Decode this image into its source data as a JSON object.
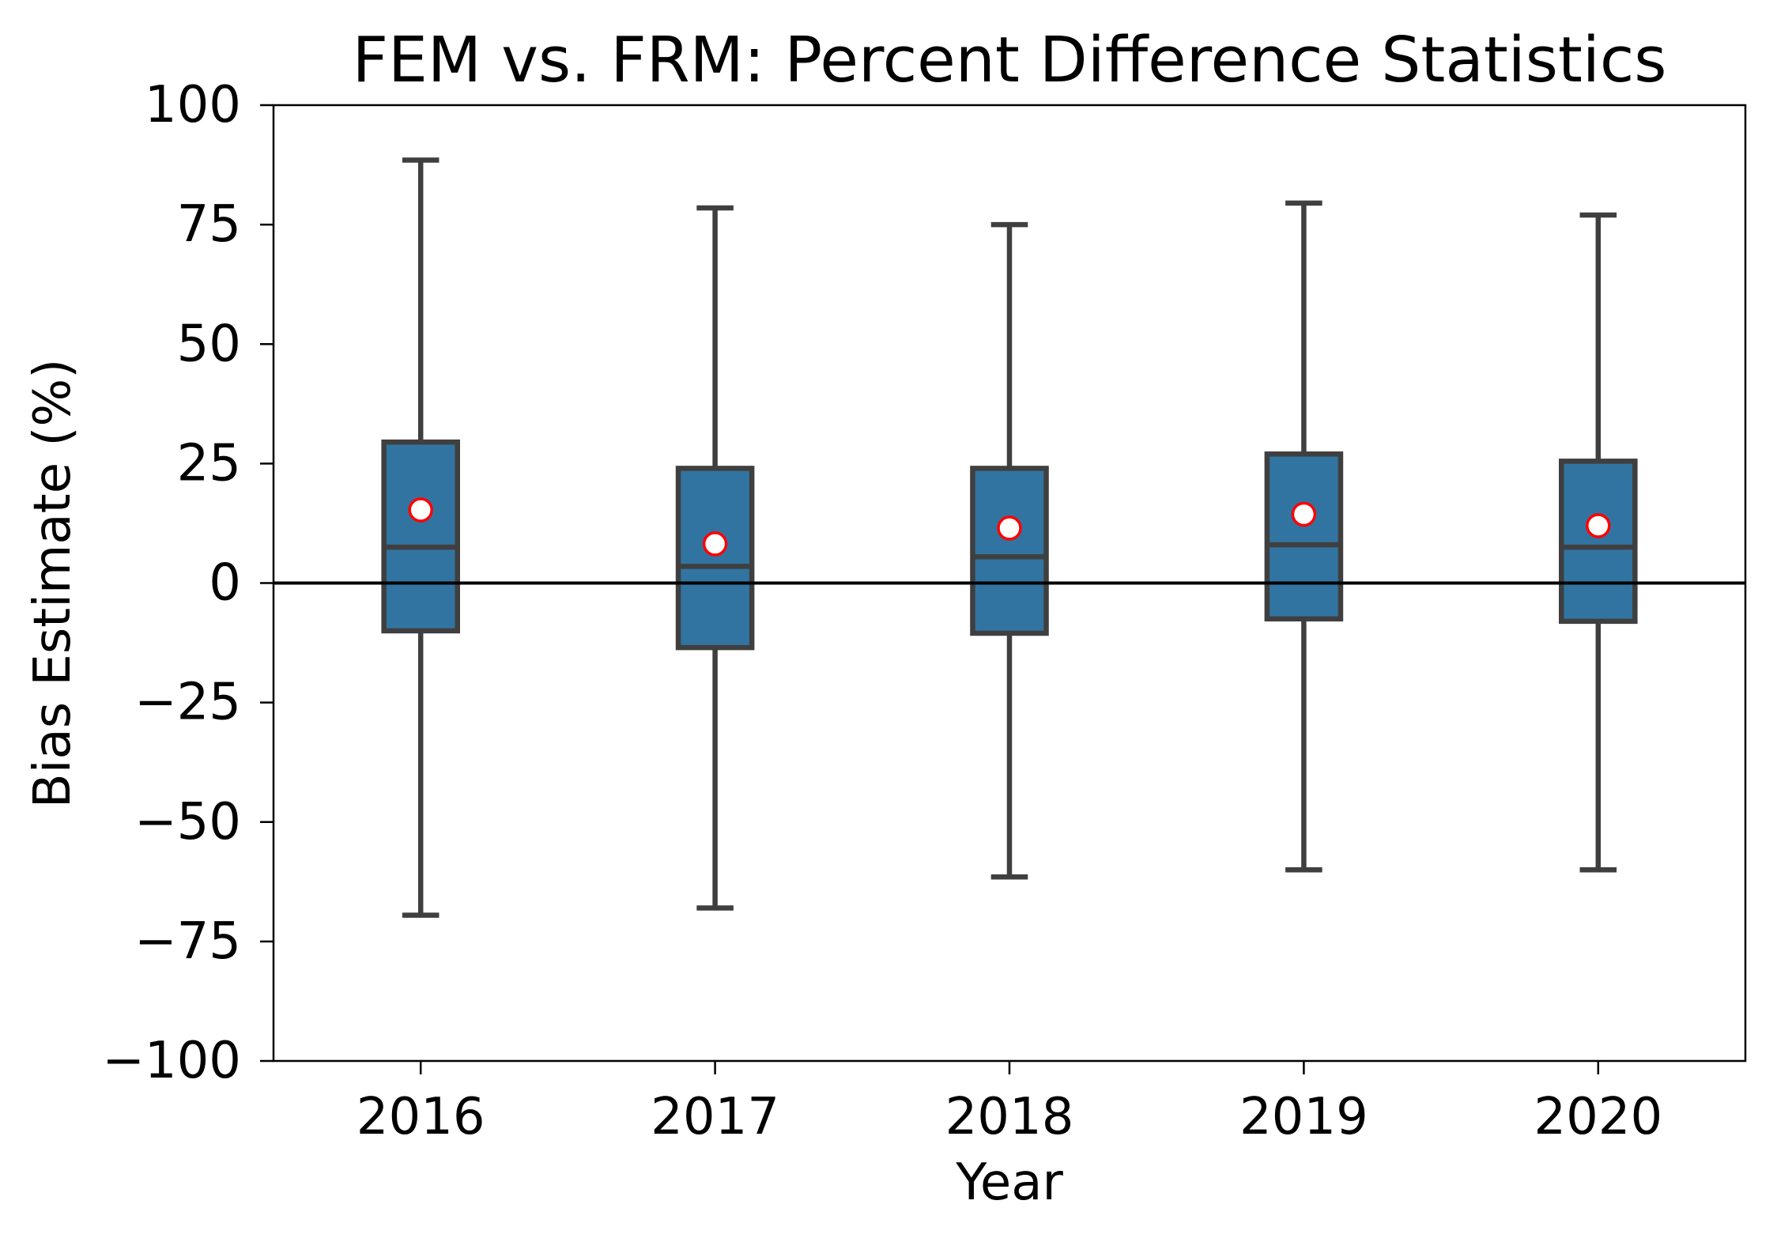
{
  "chart_data": {
    "type": "box",
    "title": "FEM vs. FRM: Percent Difference Statistics",
    "xlabel": "Year",
    "ylabel": "Bias Estimate (%)",
    "categories": [
      "2016",
      "2017",
      "2018",
      "2019",
      "2020"
    ],
    "ylim": [
      -100,
      100
    ],
    "yticks": [
      100,
      75,
      50,
      25,
      0,
      -25,
      -50,
      -75,
      -100
    ],
    "ytick_labels": [
      "100",
      "75",
      "50",
      "25",
      "0",
      "−25",
      "−50",
      "−75",
      "−100"
    ],
    "boxes": [
      {
        "whislo": -69.5,
        "q1": -10,
        "med": 7.5,
        "q3": 29.5,
        "whishi": 88.5,
        "mean": 15.3
      },
      {
        "whislo": -68,
        "q1": -13.5,
        "med": 3.5,
        "q3": 24,
        "whishi": 78.5,
        "mean": 8.2
      },
      {
        "whislo": -61.5,
        "q1": -10.5,
        "med": 5.5,
        "q3": 24,
        "whishi": 75,
        "mean": 11.5
      },
      {
        "whislo": -60,
        "q1": -7.5,
        "med": 8,
        "q3": 27,
        "whishi": 79.5,
        "mean": 14.4
      },
      {
        "whislo": -60,
        "q1": -8,
        "med": 7.5,
        "q3": 25.5,
        "whishi": 77,
        "mean": 12.0
      }
    ],
    "reference_line_y": 0,
    "grid": false,
    "colors": {
      "box_fill": "#3274a1",
      "box_edge": "#3f3f3f",
      "mean_marker_fill": "#ffffff",
      "mean_marker_edge": "#ff0000",
      "reference_line": "#000000",
      "axes": "#000000"
    }
  }
}
